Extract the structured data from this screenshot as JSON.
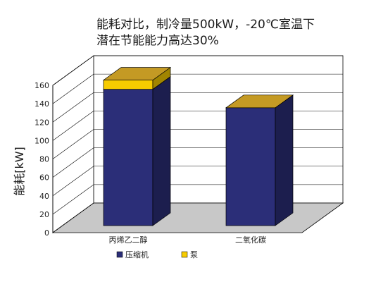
{
  "chart_data": {
    "type": "bar",
    "stacked": true,
    "three_d": true,
    "title": "能耗对比，制冷量500kW，-20℃室温下",
    "subtitle": "潜在节能能力高达30%",
    "ylabel": "能耗[kW]",
    "xlabel": "",
    "ylim": [
      0,
      160
    ],
    "yticks": [
      0,
      20,
      40,
      60,
      80,
      100,
      120,
      140,
      160
    ],
    "grid": true,
    "legend_position": "bottom",
    "categories": [
      "丙烯乙二醇",
      "二氧化碳"
    ],
    "series": [
      {
        "name": "压缩机",
        "values": [
          148,
          128
        ],
        "color": "#2b2e78"
      },
      {
        "name": "泵",
        "values": [
          10,
          0
        ],
        "color": "#f7cc00"
      }
    ],
    "top_face_color": "#c49a24",
    "floor_color": "#c8c8c8"
  }
}
